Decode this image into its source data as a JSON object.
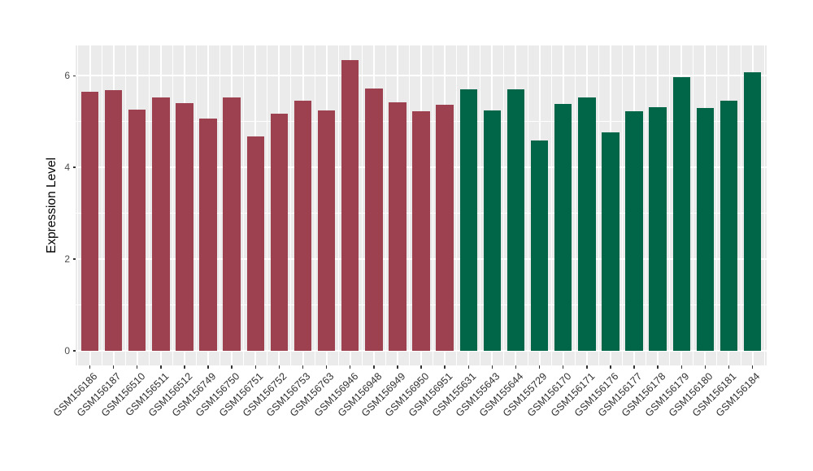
{
  "chart_data": {
    "type": "bar",
    "title": "",
    "xlabel": "",
    "ylabel": "Expression Level",
    "ylim": [
      -0.32,
      6.66
    ],
    "yticks": [
      0,
      2,
      4,
      6
    ],
    "yticks_minor": [
      1,
      3,
      5
    ],
    "grid": "on",
    "legend": "none",
    "panel_bg": "#EBEBEB",
    "grid_color": "#FFFFFF",
    "tick_color": "#333333",
    "categories": [
      "GSM156186",
      "GSM156187",
      "GSM156510",
      "GSM156511",
      "GSM156512",
      "GSM156749",
      "GSM156750",
      "GSM156751",
      "GSM156752",
      "GSM156753",
      "GSM156763",
      "GSM156946",
      "GSM156948",
      "GSM156949",
      "GSM156950",
      "GSM156951",
      "GSM155631",
      "GSM155643",
      "GSM155644",
      "GSM155729",
      "GSM156170",
      "GSM156171",
      "GSM156176",
      "GSM156177",
      "GSM156178",
      "GSM156179",
      "GSM156180",
      "GSM156181",
      "GSM156184"
    ],
    "values": [
      5.65,
      5.69,
      5.27,
      5.52,
      5.4,
      5.06,
      5.52,
      4.68,
      5.17,
      5.45,
      5.24,
      6.34,
      5.73,
      5.42,
      5.22,
      5.37,
      5.71,
      5.24,
      5.7,
      4.59,
      5.38,
      5.52,
      4.77,
      5.22,
      5.32,
      5.97,
      5.29,
      5.46,
      6.07
    ],
    "groups": [
      "maroon",
      "maroon",
      "maroon",
      "maroon",
      "maroon",
      "maroon",
      "maroon",
      "maroon",
      "maroon",
      "maroon",
      "maroon",
      "maroon",
      "maroon",
      "maroon",
      "maroon",
      "maroon",
      "green",
      "green",
      "green",
      "green",
      "green",
      "green",
      "green",
      "green",
      "green",
      "green",
      "green",
      "green",
      "green"
    ],
    "colors": {
      "maroon": "#9D4050",
      "green": "#006647"
    }
  }
}
